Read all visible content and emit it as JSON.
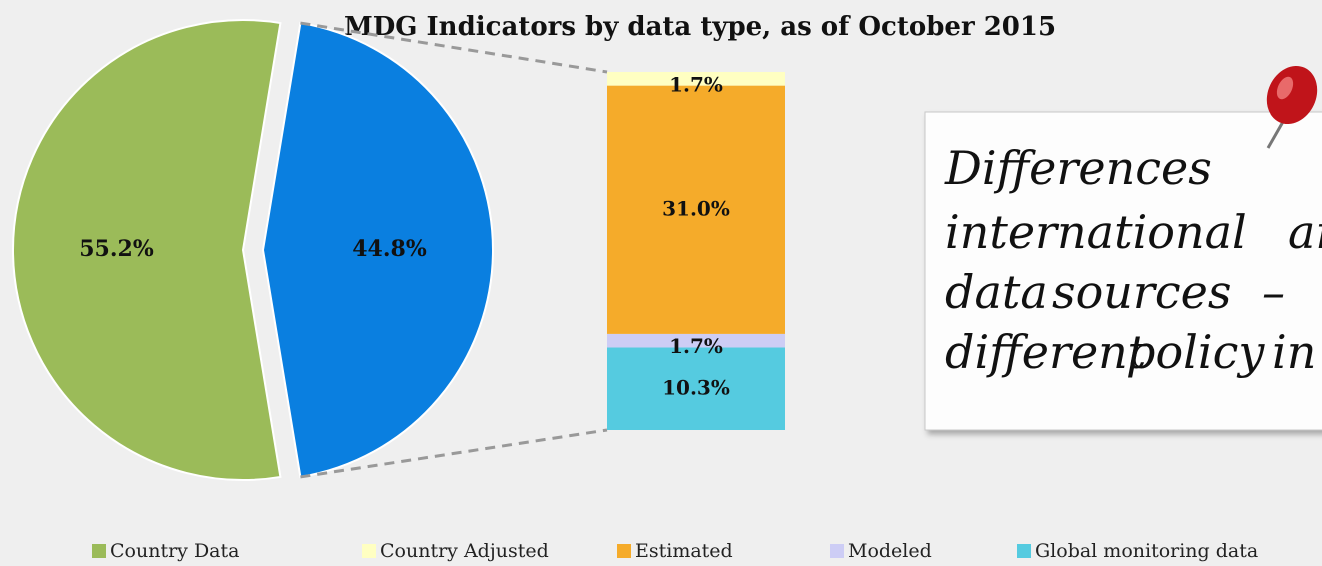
{
  "chart_data": {
    "type": "pie-of-bar",
    "title": "MDG Indicators by data type, as of October 2015",
    "pie": {
      "categories": [
        "Country Data",
        null
      ],
      "values": [
        55.2,
        44.8
      ],
      "value_labels": [
        "55.2%",
        "44.8%"
      ],
      "colors": [
        "#9bbb59",
        "#0a7fe0"
      ]
    },
    "bar": {
      "categories": [
        "Global monitoring data",
        "Modeled",
        "Estimated",
        "Country Adjusted"
      ],
      "values": [
        10.3,
        1.7,
        31.0,
        1.7
      ],
      "value_labels": [
        "10.3%",
        "1.7%",
        "31.0%",
        "1.7%"
      ],
      "colors": [
        "#55cbe0",
        "#cdcdf5",
        "#f5ab2a",
        "#ffffc2"
      ]
    },
    "note": {
      "lines": [
        "Differences",
        "international ar",
        "data sources –",
        "different policy in"
      ]
    }
  }
}
